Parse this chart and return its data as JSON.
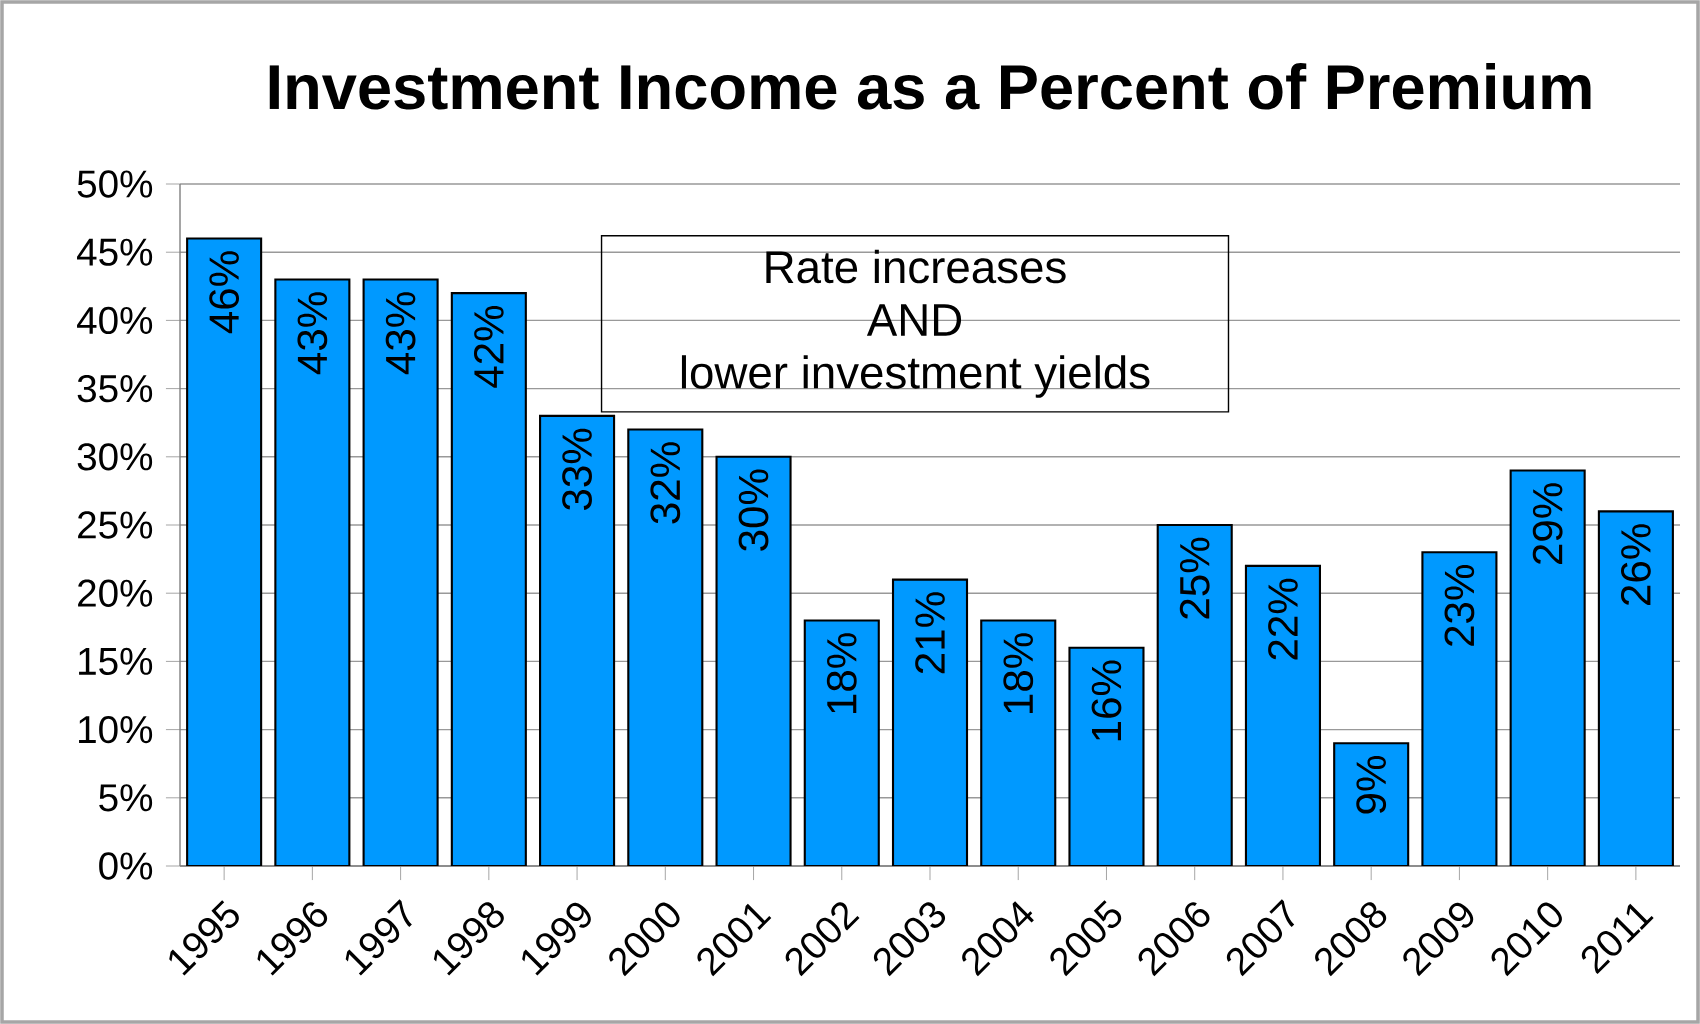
{
  "chart_data": {
    "type": "bar",
    "title": "Investment Income as a Percent of Premium",
    "categories": [
      "1995",
      "1996",
      "1997",
      "1998",
      "1999",
      "2000",
      "2001",
      "2002",
      "2003",
      "2004",
      "2005",
      "2006",
      "2007",
      "2008",
      "2009",
      "2010",
      "2011"
    ],
    "values": [
      46,
      43,
      43,
      42,
      33,
      32,
      30,
      18,
      21,
      18,
      16,
      25,
      22,
      9,
      23,
      29,
      26
    ],
    "value_labels": [
      "46%",
      "43%",
      "43%",
      "42%",
      "33%",
      "32%",
      "30%",
      "18%",
      "21%",
      "18%",
      "16%",
      "25%",
      "22%",
      "9%",
      "23%",
      "29%",
      "26%"
    ],
    "color": "#0099ff",
    "ylim": [
      0,
      50
    ],
    "yticks": [
      {
        "value": 0,
        "label": "0%"
      },
      {
        "value": 5,
        "label": "5%"
      },
      {
        "value": 10,
        "label": "10%"
      },
      {
        "value": 15,
        "label": "15%"
      },
      {
        "value": 20,
        "label": "20%"
      },
      {
        "value": 25,
        "label": "25%"
      },
      {
        "value": 30,
        "label": "30%"
      },
      {
        "value": 35,
        "label": "35%"
      },
      {
        "value": 40,
        "label": "40%"
      },
      {
        "value": 45,
        "label": "45%"
      },
      {
        "value": 50,
        "label": "50%"
      }
    ],
    "annotations": [
      "Rate increases",
      "AND",
      "lower investment yields"
    ],
    "grid": "y"
  }
}
